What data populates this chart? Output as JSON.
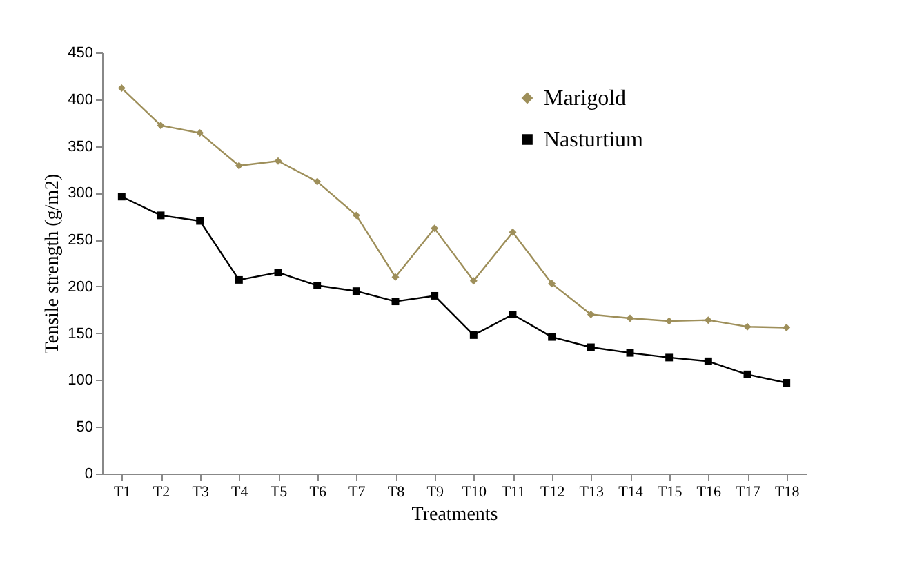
{
  "chart_data": {
    "type": "line",
    "xlabel": "Treatments",
    "ylabel": "Tensile strength (g/m2)",
    "categories": [
      "T1",
      "T2",
      "T3",
      "T4",
      "T5",
      "T6",
      "T7",
      "T8",
      "T9",
      "T10",
      "T11",
      "T12",
      "T13",
      "T14",
      "T15",
      "T16",
      "T17",
      "T18"
    ],
    "series": [
      {
        "name": "Marigold",
        "color": "#9e8f5a",
        "marker": "diamond",
        "values": [
          412,
          372,
          364,
          329,
          334,
          312,
          276,
          210,
          262,
          206,
          258,
          203,
          170,
          166,
          163,
          164,
          157,
          156
        ]
      },
      {
        "name": "Nasturtium",
        "color": "#000000",
        "marker": "square",
        "values": [
          296,
          276,
          270,
          207,
          215,
          201,
          195,
          184,
          190,
          148,
          170,
          146,
          135,
          129,
          124,
          120,
          106,
          97
        ]
      }
    ],
    "ylim": [
      0,
      450
    ],
    "yticks": [
      0,
      50,
      100,
      150,
      200,
      250,
      300,
      350,
      400,
      450
    ],
    "grid": false,
    "legend": "top right"
  }
}
